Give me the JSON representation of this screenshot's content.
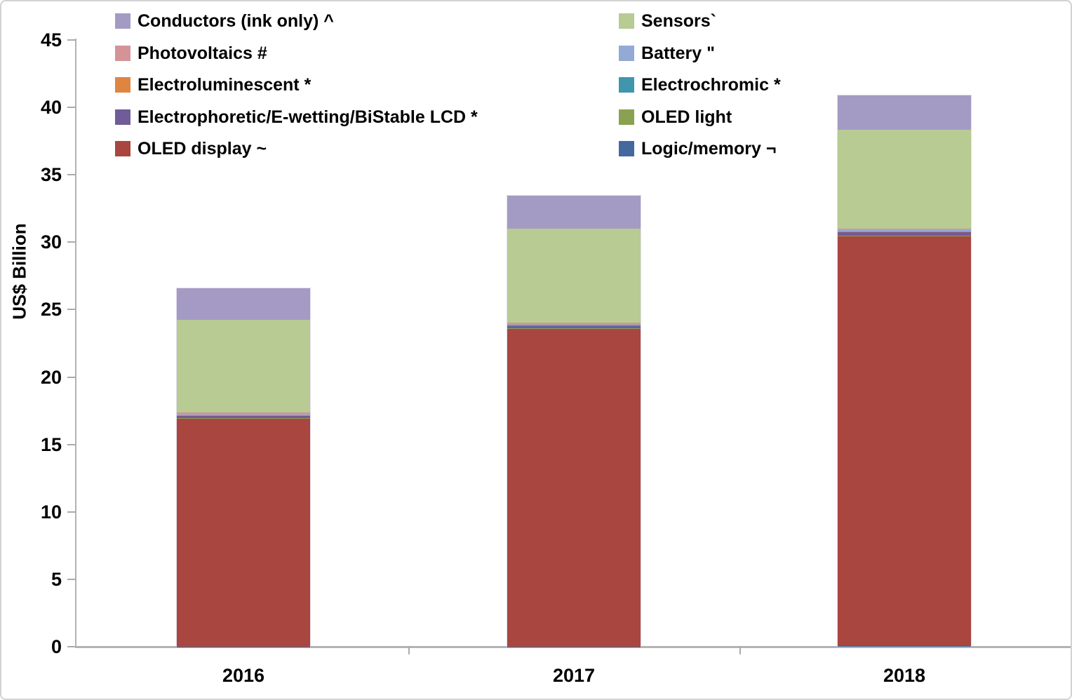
{
  "chart_data": {
    "type": "bar",
    "stacked": true,
    "title": "",
    "xlabel": "",
    "ylabel": "US$ Billion",
    "ylim": [
      0,
      45
    ],
    "y_ticks": [
      0,
      5,
      10,
      15,
      20,
      25,
      30,
      35,
      40,
      45
    ],
    "grid": false,
    "categories": [
      "2016",
      "2017",
      "2018"
    ],
    "series": [
      {
        "name": "Logic/memory ¬",
        "color": "#44699f",
        "values": [
          0.02,
          0.02,
          0.03
        ]
      },
      {
        "name": "OLED display ~",
        "color": "#a8463f",
        "values": [
          16.9,
          23.55,
          30.4
        ]
      },
      {
        "name": "OLED light",
        "color": "#89a251",
        "values": [
          0.03,
          0.04,
          0.08
        ]
      },
      {
        "name": "Electrophoretic/E-wetting/BiStable LCD *",
        "color": "#6f5c99",
        "values": [
          0.2,
          0.22,
          0.25
        ]
      },
      {
        "name": "Electrochromic *",
        "color": "#3f96ad",
        "values": [
          0.01,
          0.01,
          0.02
        ]
      },
      {
        "name": "Electroluminescent *",
        "color": "#de8540",
        "values": [
          0.02,
          0.02,
          0.04
        ]
      },
      {
        "name": "Battery \"",
        "color": "#93a9d6",
        "values": [
          0.04,
          0.05,
          0.06
        ]
      },
      {
        "name": "Photovoltaics #",
        "color": "#d49497",
        "values": [
          0.15,
          0.12,
          0.15
        ]
      },
      {
        "name": "Sensors`",
        "color": "#b7cb93",
        "values": [
          6.85,
          6.95,
          7.3
        ]
      },
      {
        "name": "Conductors (ink only) ^",
        "color": "#a49bc4",
        "values": [
          2.35,
          2.45,
          2.55
        ]
      }
    ],
    "totals": [
      26.57,
      33.43,
      40.88
    ],
    "legend": {
      "position": "top",
      "columns": [
        [
          "Conductors (ink only) ^",
          "Photovoltaics #",
          "Electroluminescent *",
          "Electrophoretic/E-wetting/BiStable LCD *",
          "OLED display ~"
        ],
        [
          "Sensors`",
          "Battery \"",
          "Electrochromic *",
          "OLED light",
          "Logic/memory ¬"
        ]
      ]
    }
  }
}
